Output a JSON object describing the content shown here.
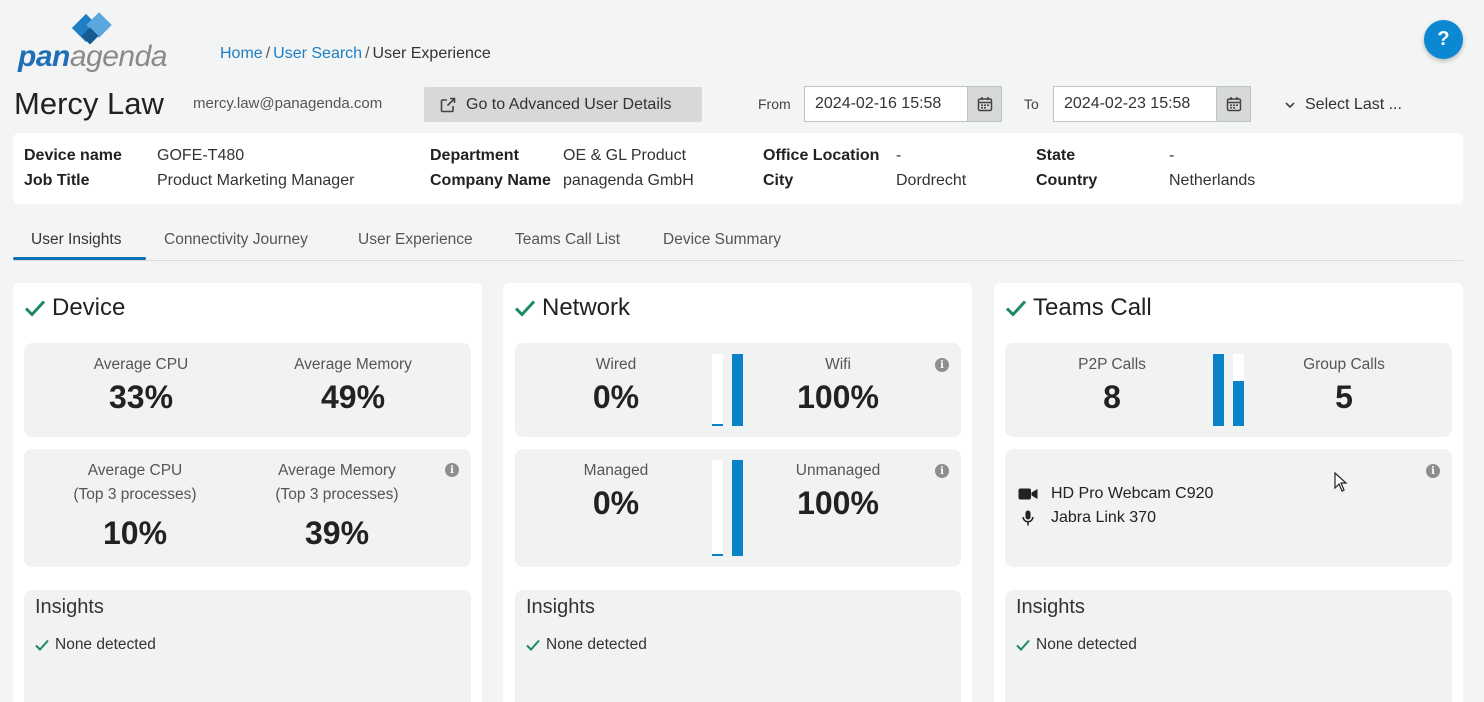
{
  "brand": {
    "logo_pan": "pan",
    "logo_agenda": "agenda"
  },
  "breadcrumb": {
    "home": "Home",
    "user_search": "User Search",
    "current": "User Experience",
    "sep": "/"
  },
  "help_label": "?",
  "user": {
    "name": "Mercy Law",
    "email": "mercy.law@panagenda.com"
  },
  "advanced_button": "Go to Advanced User Details",
  "range": {
    "from_label": "From",
    "from_value": "2024-02-16 15:58",
    "to_label": "To",
    "to_value": "2024-02-23 15:58",
    "select_last": "Select Last ..."
  },
  "details": {
    "device_name_k": "Device name",
    "device_name_v": "GOFE-T480",
    "job_title_k": "Job Title",
    "job_title_v": "Product Marketing Manager",
    "department_k": "Department",
    "department_v": "OE & GL Product",
    "company_k": "Company Name",
    "company_v": "panagenda GmbH",
    "office_k": "Office Location",
    "office_v": "-",
    "city_k": "City",
    "city_v": "Dordrecht",
    "state_k": "State",
    "state_v": "-",
    "country_k": "Country",
    "country_v": "Netherlands"
  },
  "tabs": [
    "User Insights",
    "Connectivity Journey",
    "User Experience",
    "Teams Call List",
    "Device Summary"
  ],
  "device": {
    "title": "Device",
    "avg_cpu_label": "Average CPU",
    "avg_cpu_value": "33%",
    "avg_mem_label": "Average Memory",
    "avg_mem_value": "49%",
    "top_cpu_label1": "Average CPU",
    "top_cpu_label2": "(Top 3 processes)",
    "top_cpu_value": "10%",
    "top_mem_label1": "Average Memory",
    "top_mem_label2": "(Top 3 processes)",
    "top_mem_value": "39%"
  },
  "network": {
    "title": "Network",
    "wired_label": "Wired",
    "wired_value": "0%",
    "wired_fraction": 0.0,
    "wifi_label": "Wifi",
    "wifi_value": "100%",
    "wifi_fraction": 1.0,
    "managed_label": "Managed",
    "managed_value": "0%",
    "managed_fraction": 0.0,
    "unmanaged_label": "Unmanaged",
    "unmanaged_value": "100%",
    "unmanaged_fraction": 1.0
  },
  "teams": {
    "title": "Teams Call",
    "p2p_label": "P2P Calls",
    "p2p_value": "8",
    "p2p_fraction": 1.0,
    "group_label": "Group Calls",
    "group_value": "5",
    "group_fraction": 0.625,
    "camera": "HD Pro Webcam C920",
    "microphone": "Jabra Link 370"
  },
  "insights": {
    "title": "Insights",
    "none": "None detected"
  },
  "colors": {
    "accent": "#0a82c8",
    "check": "#1e8a5f",
    "link": "#1e7fc2",
    "tab_underline": "#0f70b3"
  },
  "icons": [
    "external-link-icon",
    "calendar-icon",
    "chevron-down-icon",
    "check-icon",
    "info-icon",
    "camera-icon",
    "microphone-icon",
    "help-icon"
  ]
}
